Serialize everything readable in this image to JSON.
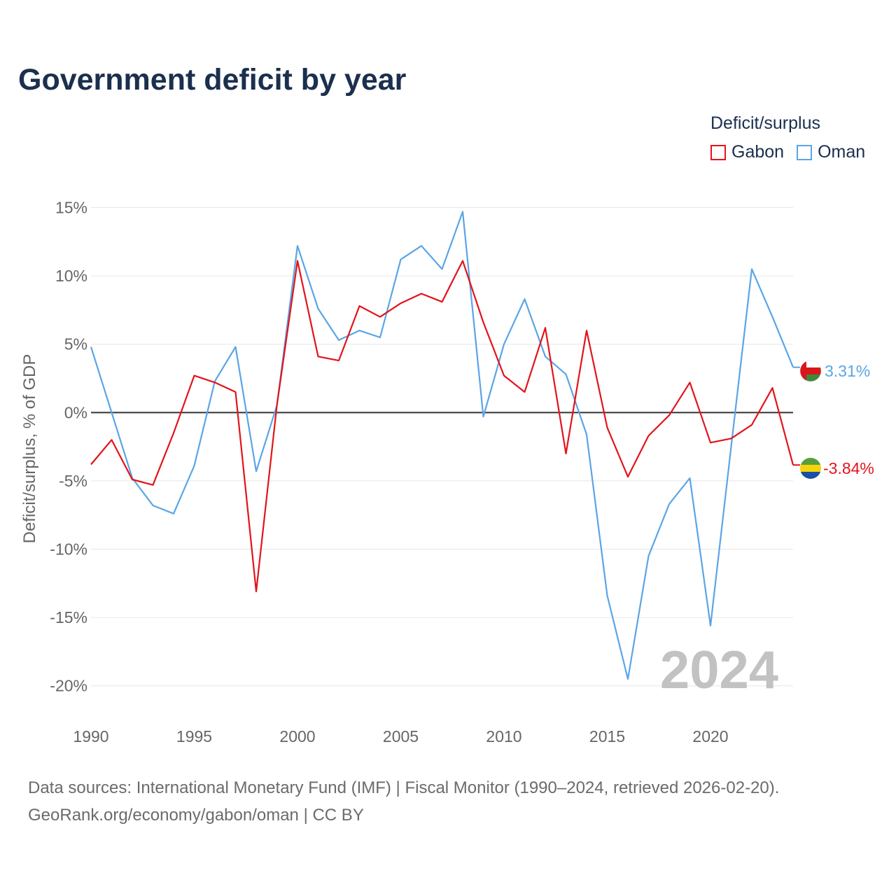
{
  "colors": {
    "gabon": "#e3131b",
    "oman": "#5aa5e6",
    "title": "#1b2f4e",
    "axis_text": "#666666",
    "year_watermark": "#c2c2c2"
  },
  "chart_data": {
    "type": "line",
    "title": "Government deficit by year",
    "legend_title": "Deficit/surplus",
    "ylabel": "Deficit/surplus, % of GDP",
    "xlabel": "",
    "x": [
      1990,
      1991,
      1992,
      1993,
      1994,
      1995,
      1996,
      1997,
      1998,
      1999,
      2000,
      2001,
      2002,
      2003,
      2004,
      2005,
      2006,
      2007,
      2008,
      2009,
      2010,
      2011,
      2012,
      2013,
      2014,
      2015,
      2016,
      2017,
      2018,
      2019,
      2020,
      2021,
      2022,
      2023,
      2024
    ],
    "series": [
      {
        "name": "Gabon",
        "color": "#e3131b",
        "flag": "gabon-flag-icon",
        "end_label": "-3.84%",
        "values": [
          -3.8,
          -2.0,
          -4.9,
          -5.3,
          -1.5,
          2.7,
          2.2,
          1.5,
          -13.1,
          0.5,
          11.1,
          4.1,
          3.8,
          7.8,
          7.0,
          8.0,
          8.7,
          8.1,
          11.1,
          6.6,
          2.7,
          1.5,
          6.2,
          -3.0,
          6.0,
          -1.1,
          -4.7,
          -1.7,
          -0.2,
          2.2,
          -2.2,
          -1.9,
          -0.9,
          1.8,
          -3.84
        ]
      },
      {
        "name": "Oman",
        "color": "#5aa5e6",
        "flag": "oman-flag-icon",
        "end_label": "3.31%",
        "values": [
          4.8,
          0.0,
          -4.8,
          -6.8,
          -7.4,
          -3.9,
          2.3,
          4.8,
          -4.3,
          0.5,
          12.2,
          7.6,
          5.3,
          6.0,
          5.5,
          11.2,
          12.2,
          10.5,
          14.7,
          -0.3,
          5.0,
          8.3,
          4.1,
          2.8,
          -1.6,
          -13.4,
          -19.5,
          -10.5,
          -6.7,
          -4.8,
          -15.6,
          -2.5,
          10.5,
          7.0,
          3.31
        ]
      }
    ],
    "yticks": [
      15,
      10,
      5,
      0,
      -5,
      -10,
      -15,
      -20
    ],
    "ytick_labels": [
      "15%",
      "10%",
      "5%",
      "0%",
      "-5%",
      "-10%",
      "-15%",
      "-20%"
    ],
    "xticks": [
      1990,
      1995,
      2000,
      2005,
      2010,
      2015,
      2020
    ],
    "xtick_labels": [
      "1990",
      "1995",
      "2000",
      "2005",
      "2010",
      "2015",
      "2020"
    ],
    "ylim": [
      -21.5,
      16
    ],
    "xlim": [
      1990,
      2024
    ],
    "grid": true,
    "current_year_label": "2024",
    "legend_position": "top-right"
  },
  "footer": {
    "source_line": "Data sources: International Monetary Fund (IMF) | Fiscal Monitor (1990–2024, retrieved 2026-02-20).",
    "attribution_line": "GeoRank.org/economy/gabon/oman | CC BY"
  }
}
